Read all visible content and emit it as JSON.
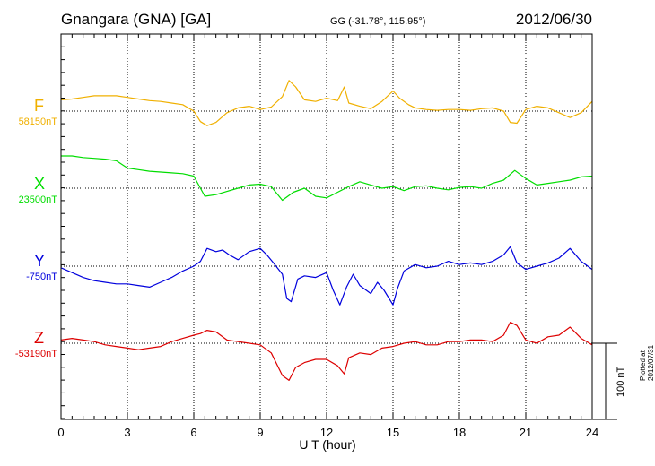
{
  "header": {
    "station": "Gnangara (GNA)  [GA]",
    "coords": "GG (-31.78°, 115.95°)",
    "date": "2012/06/30"
  },
  "scale_label": "100 nT",
  "plotted_note": "Plotted at 2012/07/31 01:25 UT",
  "chart_data": {
    "type": "line",
    "xlabel": "U T (hour)",
    "xlim": [
      0,
      24
    ],
    "xticks": [
      "0",
      "3",
      "6",
      "9",
      "12",
      "15",
      "18",
      "21",
      "24"
    ],
    "grid": true,
    "scale_nT": 100,
    "series": [
      {
        "name": "F",
        "baseline": "58150nT",
        "color": "#f0b000",
        "x": [
          0,
          0.5,
          1,
          1.5,
          2,
          2.5,
          3,
          3.5,
          4,
          4.5,
          5,
          5.5,
          6,
          6.3,
          6.6,
          7,
          7.5,
          8,
          8.5,
          9,
          9.5,
          10,
          10.3,
          10.6,
          11,
          11.5,
          12,
          12.5,
          12.8,
          13,
          13.5,
          14,
          14.5,
          15,
          15.3,
          15.7,
          16,
          16.5,
          17,
          17.5,
          18,
          18.5,
          19,
          19.5,
          20,
          20.3,
          20.6,
          21,
          21.5,
          22,
          22.5,
          23,
          23.5,
          24
        ],
        "y": [
          14,
          15,
          17,
          19,
          19,
          19,
          17,
          15,
          13,
          12,
          10,
          8,
          0,
          -13,
          -18,
          -14,
          -2,
          4,
          6,
          2,
          5,
          18,
          38,
          30,
          14,
          12,
          16,
          13,
          30,
          10,
          6,
          3,
          12,
          25,
          16,
          8,
          4,
          2,
          1,
          2,
          2,
          1,
          3,
          4,
          0,
          -14,
          -15,
          2,
          6,
          4,
          -2,
          -8,
          -2,
          12
        ]
      },
      {
        "name": "X",
        "baseline": "23500nT",
        "color": "#00dd00",
        "x": [
          0,
          0.5,
          1,
          1.5,
          2,
          2.5,
          3,
          3.5,
          4,
          4.5,
          5,
          5.5,
          6,
          6.5,
          7,
          7.5,
          8,
          8.5,
          9,
          9.5,
          10,
          10.5,
          11,
          11.5,
          12,
          12.5,
          13,
          13.5,
          14,
          14.5,
          15,
          15.5,
          16,
          16.5,
          17,
          17.5,
          18,
          18.5,
          19,
          19.5,
          20,
          20.5,
          21,
          21.5,
          22,
          22.5,
          23,
          23.5,
          24
        ],
        "y": [
          40,
          40,
          38,
          37,
          36,
          34,
          25,
          23,
          21,
          20,
          19,
          18,
          15,
          -10,
          -8,
          -4,
          0,
          4,
          5,
          2,
          -15,
          -5,
          0,
          -10,
          -12,
          -5,
          2,
          8,
          4,
          0,
          2,
          -3,
          2,
          3,
          0,
          -2,
          1,
          2,
          0,
          6,
          10,
          22,
          12,
          4,
          6,
          8,
          10,
          14,
          15
        ]
      },
      {
        "name": "Y",
        "baseline": "-750nT",
        "color": "#0000dd",
        "x": [
          0,
          0.5,
          1,
          1.5,
          2,
          2.5,
          3,
          3.5,
          4,
          4.5,
          5,
          5.5,
          6,
          6.3,
          6.6,
          7,
          7.3,
          7.6,
          8,
          8.5,
          9,
          9.3,
          9.6,
          10,
          10.2,
          10.4,
          10.7,
          11,
          11.5,
          12,
          12.3,
          12.6,
          12.9,
          13.2,
          13.5,
          14,
          14.3,
          14.6,
          15,
          15.2,
          15.5,
          16,
          16.5,
          17,
          17.5,
          18,
          18.5,
          19,
          19.5,
          20,
          20.3,
          20.6,
          21,
          21.5,
          22,
          22.5,
          23,
          23.5,
          24
        ],
        "y": [
          -2,
          -8,
          -14,
          -18,
          -20,
          -22,
          -22,
          -24,
          -26,
          -20,
          -14,
          -6,
          0,
          6,
          22,
          18,
          20,
          14,
          8,
          18,
          22,
          14,
          4,
          -10,
          -40,
          -44,
          -16,
          -12,
          -14,
          -8,
          -30,
          -48,
          -26,
          -10,
          -24,
          -34,
          -20,
          -30,
          -48,
          -28,
          -6,
          2,
          -2,
          0,
          6,
          2,
          4,
          2,
          6,
          14,
          24,
          4,
          -4,
          0,
          4,
          10,
          22,
          6,
          -4
        ]
      },
      {
        "name": "Z",
        "baseline": "-53190nT",
        "color": "#dd0000",
        "x": [
          0,
          0.5,
          1,
          1.5,
          2,
          2.5,
          3,
          3.5,
          4,
          4.5,
          5,
          5.5,
          6,
          6.3,
          6.6,
          7,
          7.5,
          8,
          8.5,
          9,
          9.5,
          10,
          10.3,
          10.6,
          11,
          11.5,
          12,
          12.5,
          12.8,
          13,
          13.5,
          14,
          14.5,
          15,
          15.5,
          16,
          16.5,
          17,
          17.5,
          18,
          18.5,
          19,
          19.5,
          20,
          20.3,
          20.6,
          21,
          21.5,
          22,
          22.5,
          23,
          23.5,
          24
        ],
        "y": [
          4,
          6,
          4,
          2,
          -2,
          -4,
          -6,
          -8,
          -6,
          -4,
          2,
          6,
          10,
          12,
          16,
          14,
          4,
          2,
          0,
          -2,
          -12,
          -40,
          -46,
          -30,
          -24,
          -20,
          -20,
          -28,
          -38,
          -18,
          -12,
          -14,
          -6,
          -4,
          0,
          2,
          -2,
          -2,
          2,
          2,
          4,
          4,
          2,
          10,
          26,
          22,
          4,
          0,
          8,
          10,
          20,
          6,
          -2
        ]
      }
    ]
  }
}
